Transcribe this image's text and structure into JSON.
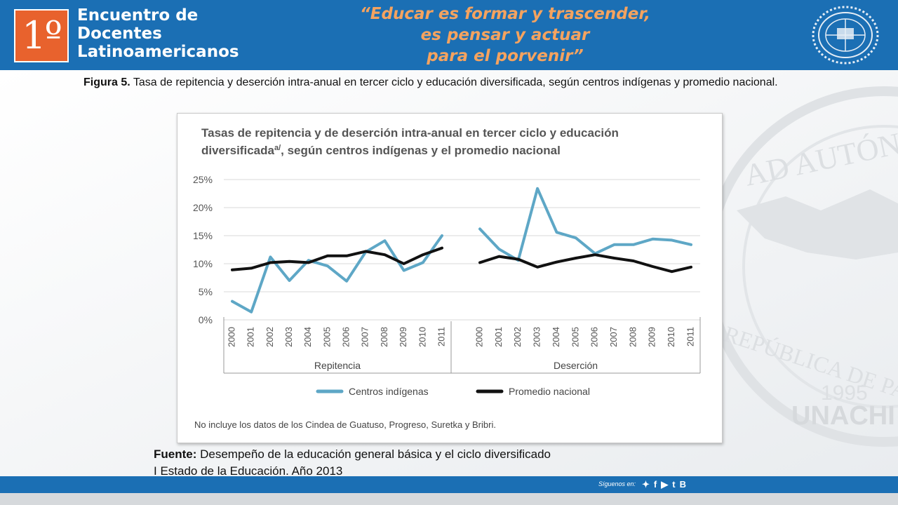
{
  "header": {
    "logo_text": "1º",
    "event_title_lines": [
      "Encuentro de",
      "Docentes",
      "Latinoamericanos"
    ],
    "slogan_lines": [
      "“Educar es formar y trascender,",
      "es pensar y actuar",
      "para el porvenir”"
    ],
    "seal_icon": "university-seal-icon"
  },
  "caption": {
    "label": "Figura 5.",
    "text": " Tasa de repitencia y deserción intra-anual en tercer ciclo y educación diversificada, según centros indígenas y promedio nacional."
  },
  "chart_data": {
    "type": "line",
    "title_line1": "Tasas de repitencia y de deserción intra-anual en tercer ciclo y educación",
    "title_line2": "diversificada",
    "title_sup": "a/",
    "title_line2_rest": ", según centros indígenas y el promedio nacional",
    "y_ticks": [
      "0%",
      "5%",
      "10%",
      "15%",
      "20%",
      "25%"
    ],
    "ylim": [
      0,
      25
    ],
    "grid": true,
    "legend_position": "bottom",
    "x": [
      "2000",
      "2001",
      "2002",
      "2003",
      "2004",
      "2005",
      "2006",
      "2007",
      "2008",
      "2009",
      "2010",
      "2011"
    ],
    "groups": [
      {
        "label": "Repitencia",
        "series": [
          {
            "name": "Centros indígenas",
            "color": "#5ea7c6",
            "values": [
              3.3,
              1.4,
              11.2,
              7.0,
              10.6,
              9.6,
              6.9,
              12.1,
              14.1,
              8.8,
              10.2,
              15.0
            ]
          },
          {
            "name": "Promedio nacional",
            "color": "#111111",
            "values": [
              8.9,
              9.2,
              10.2,
              10.4,
              10.2,
              11.4,
              11.4,
              12.2,
              11.6,
              10.0,
              11.6,
              12.8
            ]
          }
        ]
      },
      {
        "label": "Deserción",
        "series": [
          {
            "name": "Centros indígenas",
            "color": "#5ea7c6",
            "values": [
              16.2,
              12.6,
              10.6,
              23.4,
              15.6,
              14.6,
              11.8,
              13.4,
              13.4,
              14.4,
              14.2,
              13.4
            ]
          },
          {
            "name": "Promedio nacional",
            "color": "#111111",
            "values": [
              10.2,
              11.3,
              10.8,
              9.4,
              10.3,
              11.0,
              11.6,
              11.0,
              10.5,
              9.5,
              8.6,
              9.4
            ]
          }
        ]
      }
    ],
    "legend": [
      {
        "name": "Centros indígenas",
        "color": "#5ea7c6"
      },
      {
        "name": "Promedio nacional",
        "color": "#111111"
      }
    ],
    "footnote": "No incluye los datos de los Cindea de Guatuso, Progreso, Suretka y Bribri."
  },
  "source": {
    "label": "Fuente:",
    "line1": " Desempeño de la educación general básica y el ciclo diversificado",
    "line2": "I Estado de la Educación. Año 2013"
  },
  "footer": {
    "social_label": "Síguenos en:",
    "icons": [
      "twitter-icon",
      "facebook-icon",
      "youtube-icon",
      "tuenti-icon",
      "blogger-icon"
    ],
    "icon_glyphs": [
      "✦",
      "f",
      "▶",
      "t",
      "B"
    ]
  },
  "watermark": {
    "arc_text": "AD AUTÓNOM",
    "lower_text": "REPÚBLICA DE PA",
    "year": "1995",
    "name": "UNACHI"
  },
  "colors": {
    "header_blue": "#1b6fb4",
    "logo_orange": "#e8622d",
    "slogan_orange": "#f5a35f",
    "series_blue": "#5ea7c6",
    "series_black": "#111111"
  }
}
